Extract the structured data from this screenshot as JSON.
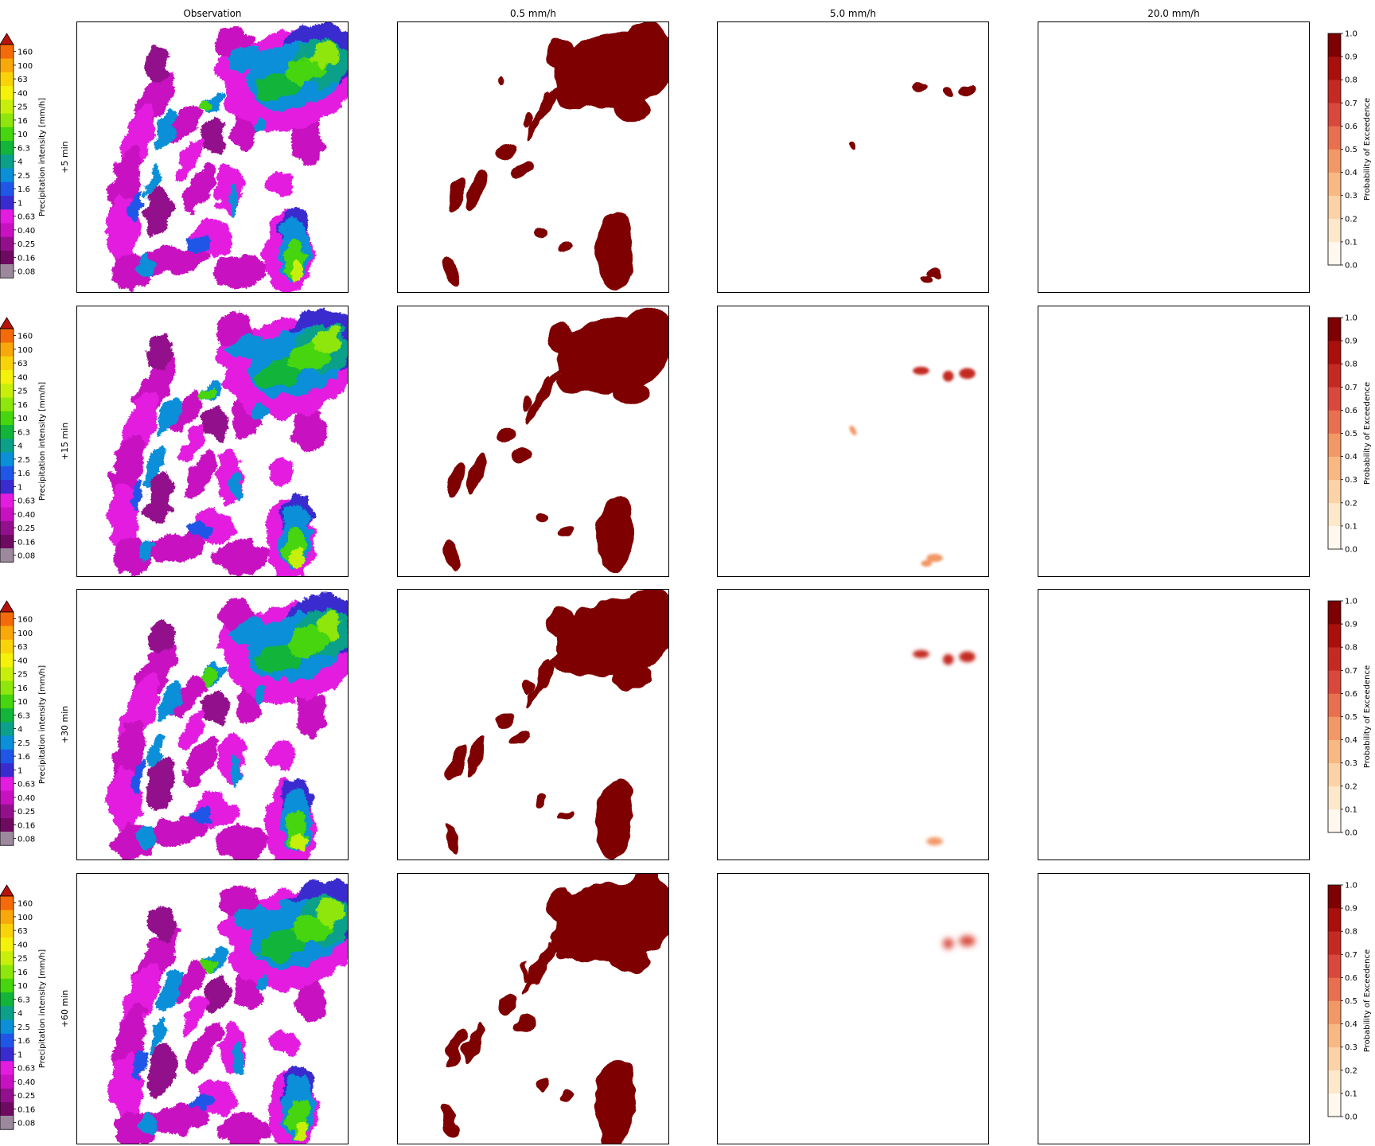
{
  "figure": {
    "column_titles": [
      "Observation",
      "0.5 mm/h",
      "5.0 mm/h",
      "20.0 mm/h"
    ],
    "row_labels": [
      "+5 min",
      "+15 min",
      "+30 min",
      "+60 min"
    ],
    "obs_colorbar_label": "Precipitation intensity [mm/h]",
    "prob_colorbar_label": "Probability of Exceedence",
    "obs_levels": [
      "0.08",
      "0.16",
      "0.25",
      "0.40",
      "0.63",
      "1",
      "1.6",
      "2.5",
      "4",
      "6.3",
      "10",
      "16",
      "25",
      "40",
      "63",
      "100",
      "160"
    ],
    "obs_colors": [
      "#9c8a9c",
      "#6e0a60",
      "#93108c",
      "#c811c0",
      "#e31ce0",
      "#3a2bcf",
      "#1f56e8",
      "#0a8fd8",
      "#0aa08a",
      "#12b43a",
      "#46d50e",
      "#8ee60c",
      "#c8ef0c",
      "#f4f20a",
      "#f9d30a",
      "#f7a80a",
      "#f56a0a",
      "#e21f0a",
      "#b8120a"
    ],
    "prob_levels": [
      "0.0",
      "0.1",
      "0.2",
      "0.3",
      "0.4",
      "0.5",
      "0.6",
      "0.7",
      "0.8",
      "0.9",
      "1.0"
    ],
    "prob_colors": [
      "#fff8ee",
      "#fde8cc",
      "#fbd3a6",
      "#f8b884",
      "#f29866",
      "#e87050",
      "#d9483c",
      "#c42a22",
      "#a80f0d",
      "#7f0000"
    ]
  },
  "chart_data": {
    "type": "heatmap",
    "rows": [
      "+5 min",
      "+15 min",
      "+30 min",
      "+60 min"
    ],
    "columns": [
      "Observation",
      "0.5 mm/h",
      "5.0 mm/h",
      "20.0 mm/h"
    ],
    "observation_colorbar": {
      "label": "Precipitation intensity [mm/h]",
      "ticks": [
        0.08,
        0.16,
        0.25,
        0.4,
        0.63,
        1,
        1.6,
        2.5,
        4,
        6.3,
        10,
        16,
        25,
        40,
        63,
        100,
        160
      ],
      "extend": "max"
    },
    "probability_colorbar": {
      "label": "Probability of Exceedence",
      "range": [
        0.0,
        1.0
      ],
      "ticks": [
        0.0,
        0.1,
        0.2,
        0.3,
        0.4,
        0.5,
        0.6,
        0.7,
        0.8,
        0.9,
        1.0
      ]
    },
    "thresholds_mm_per_h": [
      0.5,
      5.0,
      20.0
    ]
  }
}
